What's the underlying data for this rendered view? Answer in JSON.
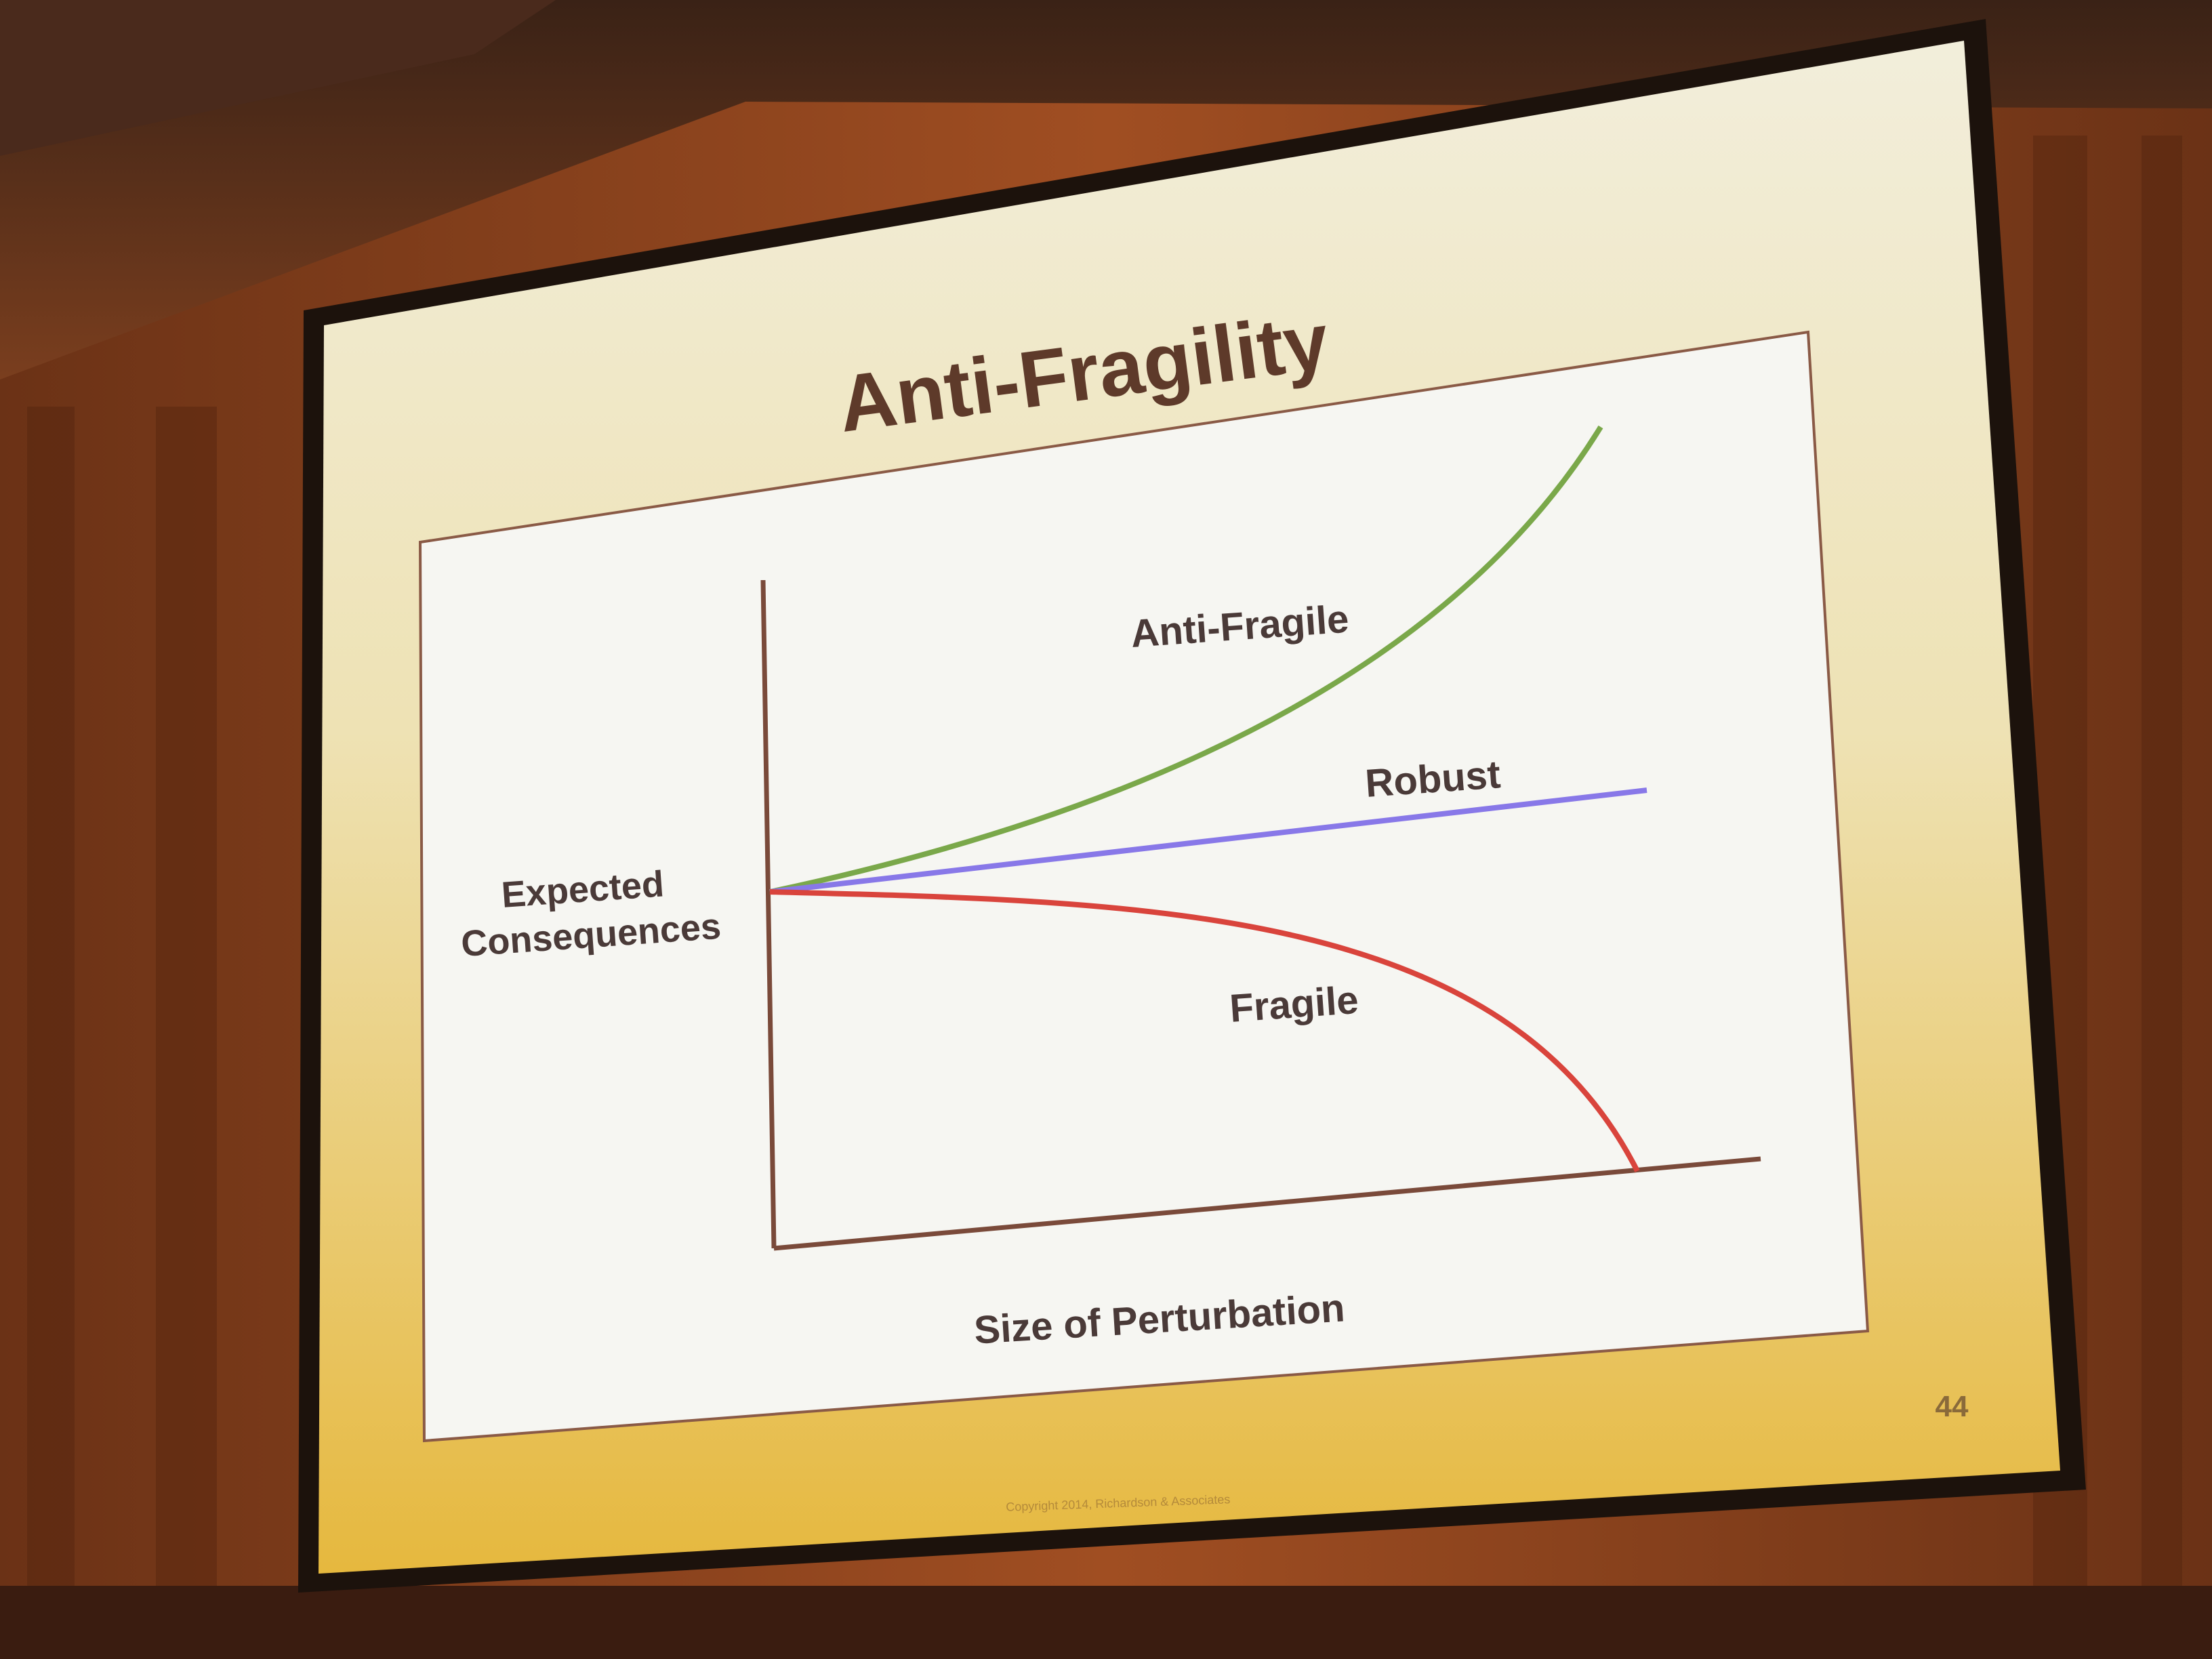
{
  "slide": {
    "title": "Anti-Fragility",
    "page_number": "44",
    "footer": "Copyright 2014, Richardson & Associates"
  },
  "chart_data": {
    "type": "line",
    "xlabel": "Size of Perturbation",
    "ylabel": "Expected Consequences",
    "grid": false,
    "series": [
      {
        "name": "Anti-Fragile",
        "color": "#7aa84a",
        "shape": "convex increasing (accelerating upward)"
      },
      {
        "name": "Robust",
        "color": "#8878e8",
        "shape": "linear, slight increase"
      },
      {
        "name": "Fragile",
        "color": "#d9443c",
        "shape": "concave decreasing, drops to zero at the end"
      }
    ],
    "axis_color": "#7a4a3a"
  },
  "colors": {
    "title": "#5e3a2a",
    "label": "#4a3a38",
    "slide_top": "#f1ecd6",
    "slide_bottom": "#e8bd46"
  }
}
